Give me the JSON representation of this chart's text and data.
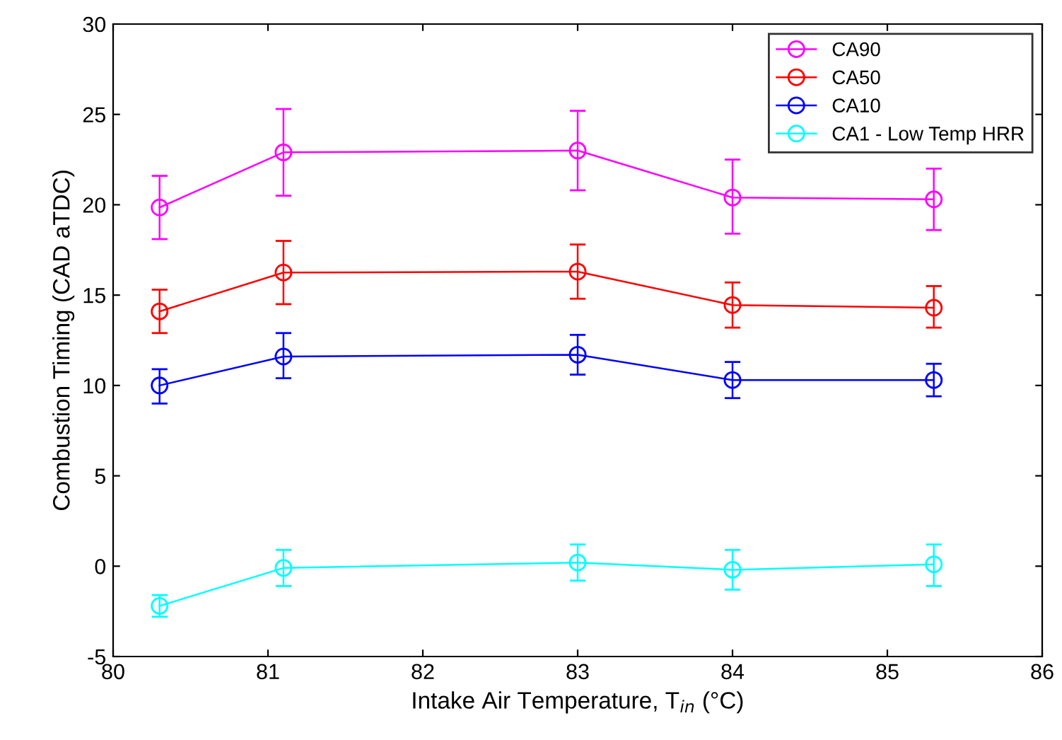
{
  "chart_data": {
    "type": "line",
    "xlabel": "Intake Air Temperature, T$_{in}$ (°C)",
    "ylabel": "Combustion Timing (CAD aTDC)",
    "x": [
      80.3,
      81.1,
      83,
      84,
      85.3
    ],
    "series": [
      {
        "name": "CA90",
        "color": "#ff00ff",
        "values": [
          19.85,
          22.9,
          23.0,
          20.4,
          20.3
        ],
        "errors": [
          [
            18.1,
            21.6
          ],
          [
            20.5,
            25.3
          ],
          [
            20.8,
            25.2
          ],
          [
            18.4,
            22.5
          ],
          [
            18.6,
            22.0
          ]
        ]
      },
      {
        "name": "CA50",
        "color": "#ff0000",
        "values": [
          14.1,
          16.25,
          16.3,
          14.45,
          14.3
        ],
        "errors": [
          [
            12.9,
            15.3
          ],
          [
            14.5,
            18.0
          ],
          [
            14.8,
            17.8
          ],
          [
            13.2,
            15.7
          ],
          [
            13.2,
            15.5
          ]
        ]
      },
      {
        "name": "CA10",
        "color": "#0000ff",
        "values": [
          10.0,
          11.6,
          11.7,
          10.3,
          10.3
        ],
        "errors": [
          [
            9.0,
            10.9
          ],
          [
            10.4,
            12.9
          ],
          [
            10.6,
            12.8
          ],
          [
            9.3,
            11.3
          ],
          [
            9.4,
            11.2
          ]
        ]
      },
      {
        "name": "CA1 - Low Temp HRR",
        "color": "#00ffff",
        "values": [
          -2.2,
          -0.1,
          0.2,
          -0.2,
          0.1
        ],
        "errors": [
          [
            -2.8,
            -1.6
          ],
          [
            -1.1,
            0.9
          ],
          [
            -0.8,
            1.2
          ],
          [
            -1.3,
            0.9
          ],
          [
            -1.1,
            1.2
          ]
        ]
      }
    ],
    "xlim": [
      80,
      86
    ],
    "xticks": [
      80,
      81,
      82,
      83,
      84,
      85,
      86
    ],
    "ylim": [
      -5,
      30
    ],
    "yticks": [
      {
        "value": -5,
        "label": "-5"
      },
      0,
      5,
      10,
      15,
      20,
      25,
      30
    ],
    "grid": false,
    "legend": "top right",
    "marker": "circle",
    "line_style": "solid"
  }
}
